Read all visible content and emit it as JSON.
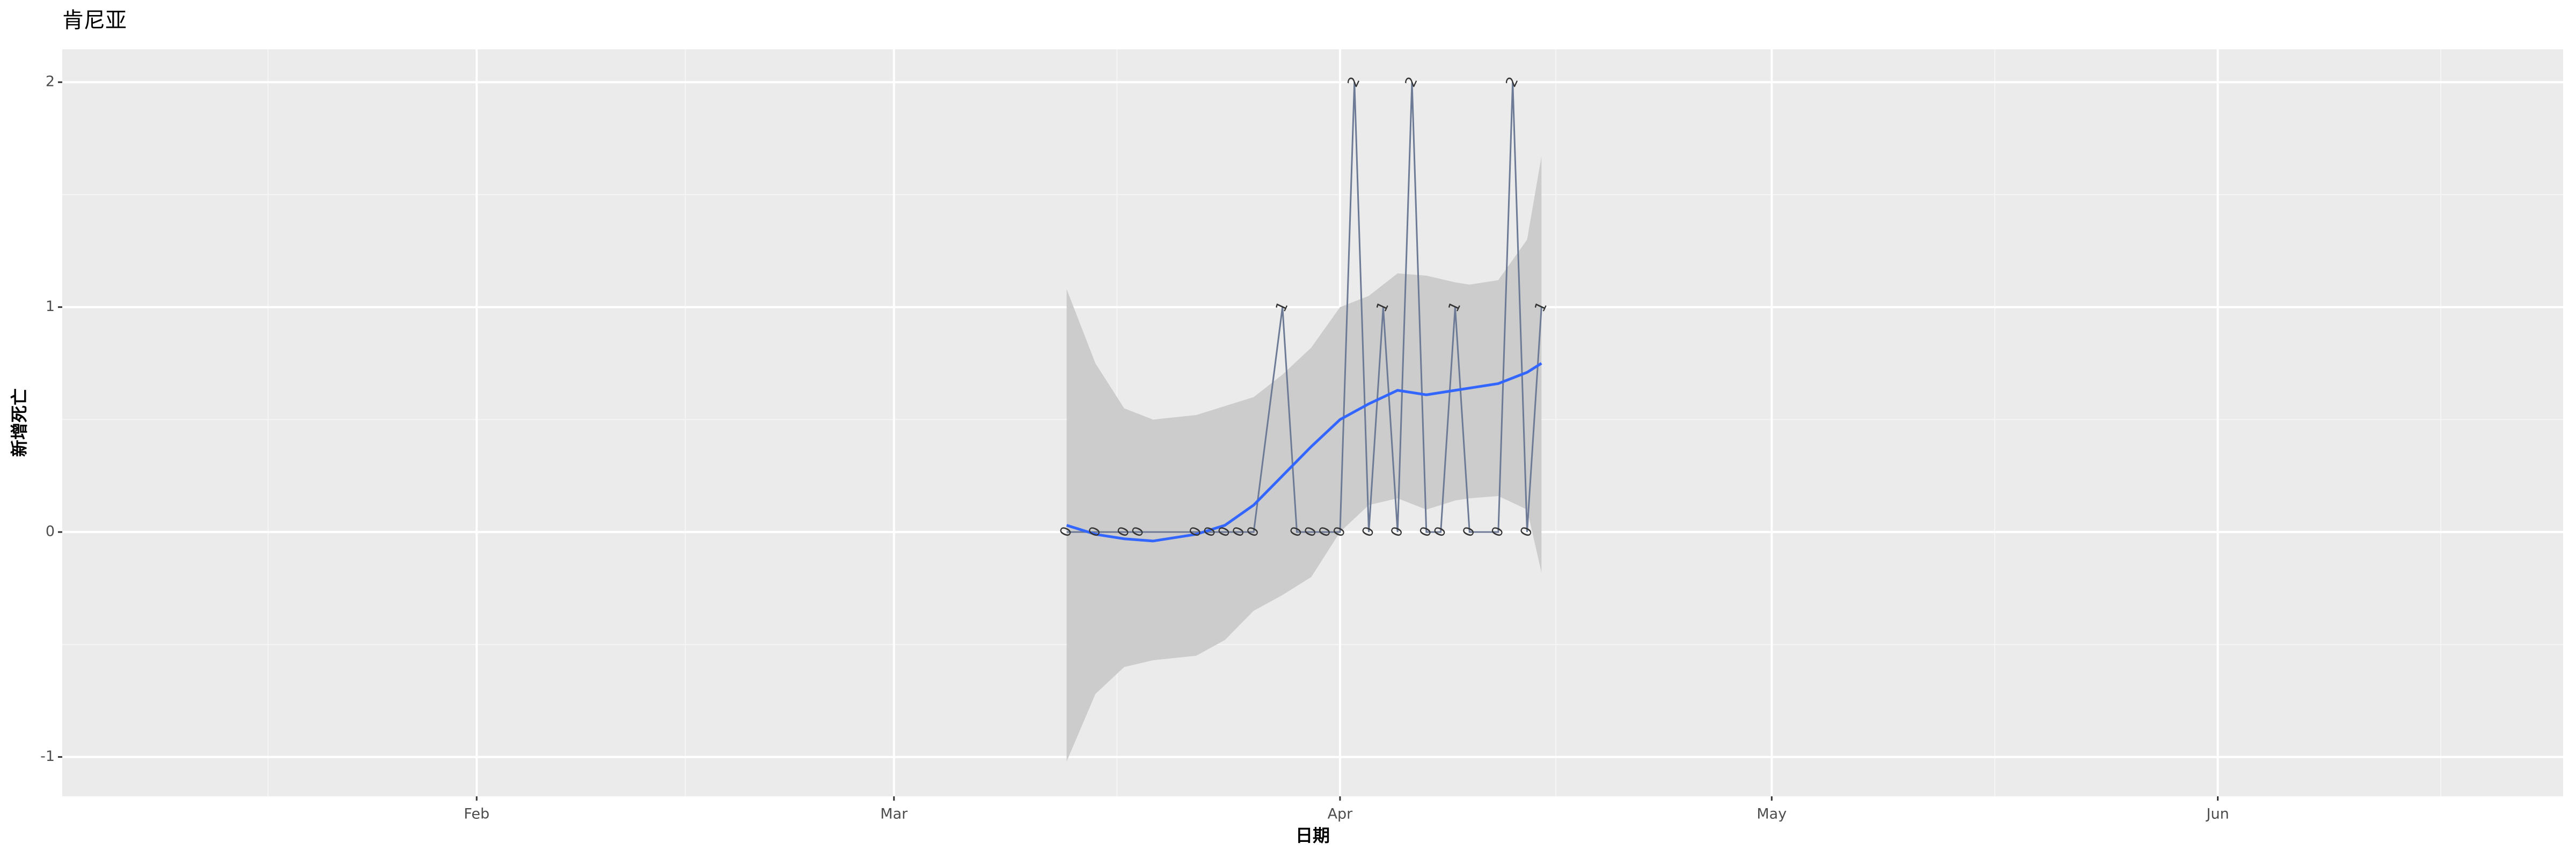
{
  "chart_data": {
    "type": "line",
    "title": "肯尼亚",
    "xlabel": "日期",
    "ylabel": "新增死亡",
    "x": [
      73,
      75,
      77,
      78,
      82,
      83,
      84,
      85,
      86,
      88,
      89,
      90,
      91,
      92,
      93,
      94,
      95,
      96,
      97,
      98,
      99,
      100,
      101,
      103,
      104,
      105,
      106
    ],
    "values": [
      0,
      0,
      0,
      0,
      0,
      0,
      0,
      0,
      0,
      1,
      0,
      0,
      0,
      0,
      2,
      0,
      1,
      0,
      2,
      0,
      0,
      1,
      0,
      0,
      2,
      0,
      1
    ],
    "color": "#6c7a96",
    "smooth": {
      "x": [
        73,
        75,
        77,
        79,
        82,
        84,
        86,
        88,
        90,
        92,
        94,
        96,
        98,
        100,
        101,
        103,
        105,
        106
      ],
      "values": [
        0.03,
        -0.01,
        -0.03,
        -0.04,
        -0.01,
        0.03,
        0.12,
        0.25,
        0.38,
        0.5,
        0.57,
        0.63,
        0.61,
        0.63,
        0.64,
        0.66,
        0.71,
        0.75
      ],
      "lower": [
        -1.02,
        -0.72,
        -0.6,
        -0.57,
        -0.55,
        -0.48,
        -0.35,
        -0.28,
        -0.2,
        0.0,
        0.12,
        0.15,
        0.1,
        0.14,
        0.15,
        0.16,
        0.1,
        -0.18
      ],
      "upper": [
        1.08,
        0.75,
        0.55,
        0.5,
        0.52,
        0.56,
        0.6,
        0.7,
        0.82,
        1.0,
        1.05,
        1.15,
        1.14,
        1.11,
        1.1,
        1.12,
        1.3,
        1.67
      ],
      "color": "#3366ff",
      "fill": "#cccccc"
    },
    "xlim": [
      3.2,
      177
    ],
    "ylim": [
      -1.175,
      2.146
    ],
    "xticks": [
      {
        "value": 32,
        "label": "Feb"
      },
      {
        "value": 61,
        "label": "Mar"
      },
      {
        "value": 92,
        "label": "Apr"
      },
      {
        "value": 122,
        "label": "May"
      },
      {
        "value": 153,
        "label": "Jun"
      }
    ],
    "yticks": [
      -1,
      0,
      1,
      2
    ],
    "grid": true
  }
}
